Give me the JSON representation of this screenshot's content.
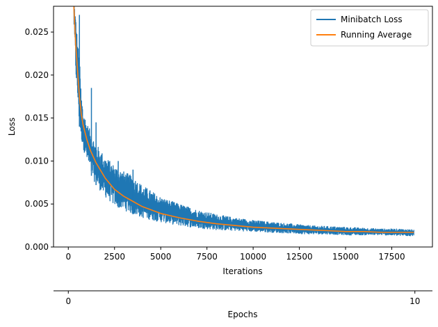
{
  "chart_data": {
    "type": "line",
    "title": "",
    "xlabel": "Iterations",
    "ylabel": "Loss",
    "secondary_xlabel": "Epochs",
    "xlim": [
      -800,
      19700
    ],
    "ylim": [
      0,
      0.028
    ],
    "x_ticks": [
      0,
      2500,
      5000,
      7500,
      10000,
      12500,
      15000,
      17500
    ],
    "x_tick_labels": [
      "0",
      "2500",
      "5000",
      "7500",
      "10000",
      "12500",
      "15000",
      "17500"
    ],
    "y_ticks": [
      0.0,
      0.005,
      0.01,
      0.015,
      0.02,
      0.025
    ],
    "y_tick_labels": [
      "0.000",
      "0.005",
      "0.010",
      "0.015",
      "0.020",
      "0.025"
    ],
    "secondary_x_ticks": [
      0,
      10
    ],
    "secondary_x_tick_labels": [
      "0",
      "10"
    ],
    "secondary_x_tick_iterations": [
      0,
      18750
    ],
    "grid": false,
    "legend_position": "top-right",
    "series": [
      {
        "name": "Minibatch Loss",
        "color": "#1f77b4",
        "kind": "noisy",
        "noise_note": "dense minibatch noise",
        "x": [
          300,
          400,
          500,
          600,
          700,
          800,
          1000,
          1200,
          1500,
          2000,
          2500,
          3000,
          3500,
          4000,
          5000,
          6000,
          7000,
          8000,
          9000,
          10000,
          11000,
          12000,
          13000,
          14000,
          15000,
          16000,
          17000,
          18000,
          18700
        ],
        "y_high": [
          0.029,
          0.027,
          0.024,
          0.022,
          0.018,
          0.016,
          0.0145,
          0.0135,
          0.012,
          0.0105,
          0.0095,
          0.0088,
          0.0082,
          0.0072,
          0.0058,
          0.005,
          0.0043,
          0.0038,
          0.0034,
          0.0031,
          0.0029,
          0.0027,
          0.0025,
          0.0024,
          0.0023,
          0.0022,
          0.0021,
          0.0021,
          0.002
        ],
        "y_low": [
          0.026,
          0.02,
          0.017,
          0.014,
          0.0125,
          0.0115,
          0.01,
          0.0085,
          0.0072,
          0.0058,
          0.0048,
          0.0043,
          0.0038,
          0.0034,
          0.0029,
          0.0025,
          0.0022,
          0.002,
          0.0019,
          0.0018,
          0.0017,
          0.0016,
          0.0015,
          0.0015,
          0.0014,
          0.0014,
          0.0014,
          0.0013,
          0.0013
        ],
        "spikes": [
          {
            "x": 600,
            "y": 0.027
          },
          {
            "x": 1250,
            "y": 0.0185
          },
          {
            "x": 1500,
            "y": 0.0145
          },
          {
            "x": 2700,
            "y": 0.01
          },
          {
            "x": 3500,
            "y": 0.009
          }
        ]
      },
      {
        "name": "Running Average",
        "color": "#ff7f0e",
        "kind": "smooth",
        "x": [
          300,
          400,
          500,
          600,
          700,
          800,
          1000,
          1200,
          1500,
          2000,
          2500,
          3000,
          3500,
          4000,
          5000,
          6000,
          7000,
          8000,
          9000,
          10000,
          11000,
          12000,
          13000,
          14000,
          15000,
          16000,
          17000,
          18000,
          18700
        ],
        "y": [
          0.028,
          0.0235,
          0.0205,
          0.0175,
          0.0155,
          0.0142,
          0.0125,
          0.0112,
          0.0098,
          0.008,
          0.0067,
          0.0059,
          0.0053,
          0.0047,
          0.0039,
          0.0034,
          0.003,
          0.0027,
          0.0025,
          0.0023,
          0.0022,
          0.0021,
          0.002,
          0.0019,
          0.0018,
          0.0018,
          0.0017,
          0.0017,
          0.0017
        ]
      }
    ]
  }
}
